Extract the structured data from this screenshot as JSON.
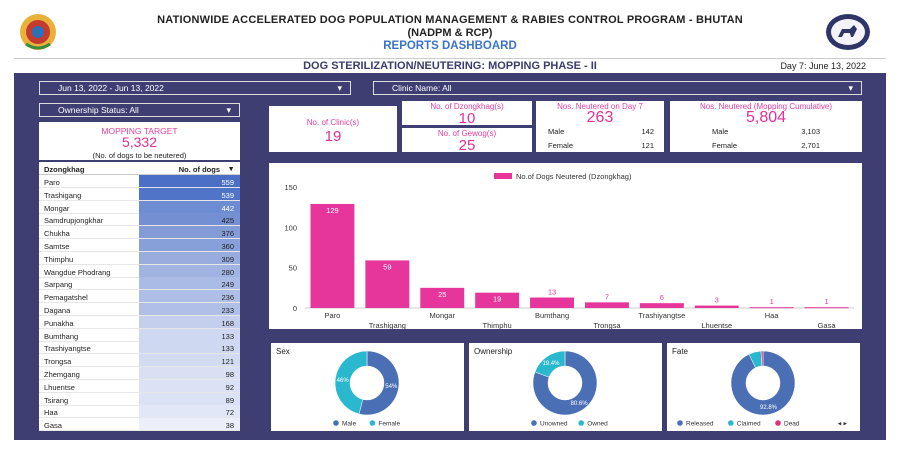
{
  "header": {
    "title_line1": "NATIONWIDE ACCELERATED DOG POPULATION MANAGEMENT & RABIES CONTROL PROGRAM - BHUTAN",
    "title_line2": "(NADPM & RCP)",
    "title_line3": "REPORTS DASHBOARD"
  },
  "subheader": {
    "title": "DOG STERILIZATION/NEUTERING: MOPPING PHASE - II",
    "day_info": "Day 7: June 13, 2022"
  },
  "filters": {
    "date_range": "Jun 13, 2022 - Jun 13, 2022",
    "clinic": "Clinic Name: All",
    "ownership": "Ownership Status: All",
    "caret": "▾"
  },
  "colors": {
    "panel": "#3f3e73",
    "accent": "#e6359b",
    "blue": "#4a6fb5",
    "cyan": "#2ab8cf"
  },
  "mopping_target": {
    "label": "MOPPING TARGET",
    "value": "5,332",
    "note": "(No. of dogs to be neutered)"
  },
  "kpis": {
    "clinics": {
      "label": "No. of Clinic(s)",
      "value": "19"
    },
    "dzongkhags": {
      "label": "No. of Dzongkhag(s)",
      "value": "10"
    },
    "gewogs": {
      "label": "No. of Gewog(s)",
      "value": "25"
    },
    "day7": {
      "label": "Nos. Neutered on Day 7",
      "value": "263",
      "male_label": "Male",
      "male": "142",
      "female_label": "Female",
      "female": "121"
    },
    "cumulative": {
      "label": "Nos. Neutered (Mopping Cumulative)",
      "value": "5,804",
      "male_label": "Male",
      "male": "3,103",
      "female_label": "Female",
      "female": "2,701"
    }
  },
  "table": {
    "col1": "Dzongkhag",
    "col2": "No. of dogs",
    "sort_icon": "▾",
    "rows": [
      {
        "name": "Paro",
        "value": "559"
      },
      {
        "name": "Trashigang",
        "value": "539"
      },
      {
        "name": "Mongar",
        "value": "442"
      },
      {
        "name": "Samdrupjongkhar",
        "value": "425"
      },
      {
        "name": "Chukha",
        "value": "376"
      },
      {
        "name": "Samtse",
        "value": "360"
      },
      {
        "name": "Thimphu",
        "value": "309"
      },
      {
        "name": "Wangdue Phodrang",
        "value": "280"
      },
      {
        "name": "Sarpang",
        "value": "249"
      },
      {
        "name": "Pemagatshel",
        "value": "236"
      },
      {
        "name": "Dagana",
        "value": "233"
      },
      {
        "name": "Punakha",
        "value": "168"
      },
      {
        "name": "Bumthang",
        "value": "133"
      },
      {
        "name": "Trashiyangtse",
        "value": "133"
      },
      {
        "name": "Trongsa",
        "value": "121"
      },
      {
        "name": "Zhemgang",
        "value": "98"
      },
      {
        "name": "Lhuentse",
        "value": "92"
      },
      {
        "name": "Tsirang",
        "value": "89"
      },
      {
        "name": "Haa",
        "value": "72"
      },
      {
        "name": "Gasa",
        "value": "38"
      }
    ]
  },
  "chart_data": [
    {
      "type": "bar",
      "series_name": "No.of Dogs Neutered (Dzongkhag)",
      "categories": [
        "Paro",
        "Trashigang",
        "Mongar",
        "Thimphu",
        "Bumthang",
        "Trongsa",
        "Trashiyangtse",
        "Lhuentse",
        "Haa",
        "Gasa"
      ],
      "values": [
        129,
        59,
        25,
        19,
        13,
        7,
        6,
        3,
        1,
        1
      ],
      "yticks": [
        "150",
        "100",
        "50",
        "0"
      ],
      "ylim": [
        0,
        150
      ],
      "legend": "top"
    },
    {
      "type": "pie",
      "title": "Sex",
      "labels": [
        "Male",
        "Female"
      ],
      "values": [
        54,
        46
      ],
      "pct_labels": [
        "54%",
        "46%"
      ],
      "colors": [
        "#4a6fb5",
        "#2ab8cf"
      ]
    },
    {
      "type": "pie",
      "title": "Ownership",
      "labels": [
        "Unowned",
        "Owned"
      ],
      "values": [
        80.6,
        19.4
      ],
      "pct_labels": [
        "80.6%",
        "19.4%"
      ],
      "colors": [
        "#4a6fb5",
        "#2ab8cf"
      ]
    },
    {
      "type": "pie",
      "title": "Fate",
      "labels": [
        "Released",
        "Claimed",
        "Dead"
      ],
      "values": [
        92.8,
        6.2,
        1.0
      ],
      "pct_labels": [
        "92.8%",
        "",
        ""
      ],
      "colors": [
        "#4a6fb5",
        "#2ab8cf",
        "#e0307a"
      ],
      "legend_nav": "◂ ▸"
    }
  ]
}
